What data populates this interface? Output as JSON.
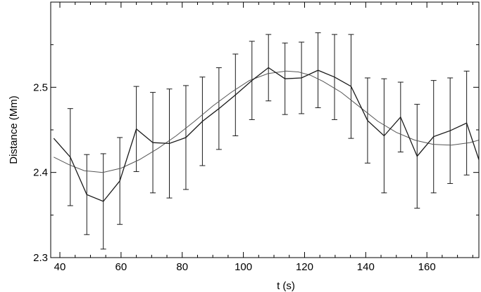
{
  "chart_data": {
    "type": "line",
    "xlabel": "t (s)",
    "ylabel": "Distance (Mm)",
    "xlim": [
      37,
      177
    ],
    "ylim": [
      2.3,
      2.6
    ],
    "x_ticks": [
      40,
      60,
      80,
      100,
      120,
      140,
      160
    ],
    "x_tick_labels": [
      "40",
      "60",
      "80",
      "100",
      "120",
      "140",
      "160"
    ],
    "y_ticks": [
      2.3,
      2.4,
      2.5
    ],
    "y_tick_labels": [
      "2.3",
      "2.4",
      "2.5"
    ],
    "grid": false,
    "colors": {
      "data": "#1a1a1a",
      "fit": "#555555",
      "frame": "#000000"
    },
    "series": [
      {
        "kind": "data-with-errorbars",
        "x": [
          38,
          43.4,
          48.8,
          54.2,
          59.6,
          65,
          70.4,
          75.8,
          81.2,
          86.6,
          92,
          97.4,
          102.8,
          108.2,
          113.6,
          119,
          124.4,
          129.8,
          135.2,
          140.6,
          146,
          151.4,
          156.8,
          162.2,
          167.6,
          173,
          177
        ],
        "y": [
          2.44,
          2.418,
          2.374,
          2.366,
          2.39,
          2.451,
          2.435,
          2.434,
          2.441,
          2.46,
          2.475,
          2.491,
          2.508,
          2.523,
          2.51,
          2.511,
          2.52,
          2.512,
          2.501,
          2.461,
          2.443,
          2.465,
          2.419,
          2.442,
          2.449,
          2.458,
          2.415
        ],
        "err": [
          null,
          0.057,
          0.047,
          0.056,
          0.051,
          0.05,
          0.059,
          0.064,
          0.061,
          0.052,
          0.048,
          0.048,
          0.046,
          0.039,
          0.042,
          0.042,
          0.044,
          0.05,
          0.061,
          0.05,
          0.067,
          0.041,
          0.061,
          0.066,
          0.062,
          0.061,
          null
        ]
      },
      {
        "kind": "fit-curve",
        "x": [
          38,
          43,
          48,
          54,
          60,
          66,
          72,
          78,
          84,
          90,
          96,
          102,
          108,
          114,
          118,
          122,
          126,
          132,
          138,
          144,
          150,
          156,
          162,
          168,
          174,
          177
        ],
        "y": [
          2.418,
          2.409,
          2.402,
          2.4,
          2.405,
          2.415,
          2.428,
          2.443,
          2.46,
          2.478,
          2.494,
          2.508,
          2.516,
          2.519,
          2.518,
          2.514,
          2.507,
          2.494,
          2.477,
          2.46,
          2.447,
          2.438,
          2.433,
          2.432,
          2.435,
          2.438
        ]
      }
    ]
  }
}
